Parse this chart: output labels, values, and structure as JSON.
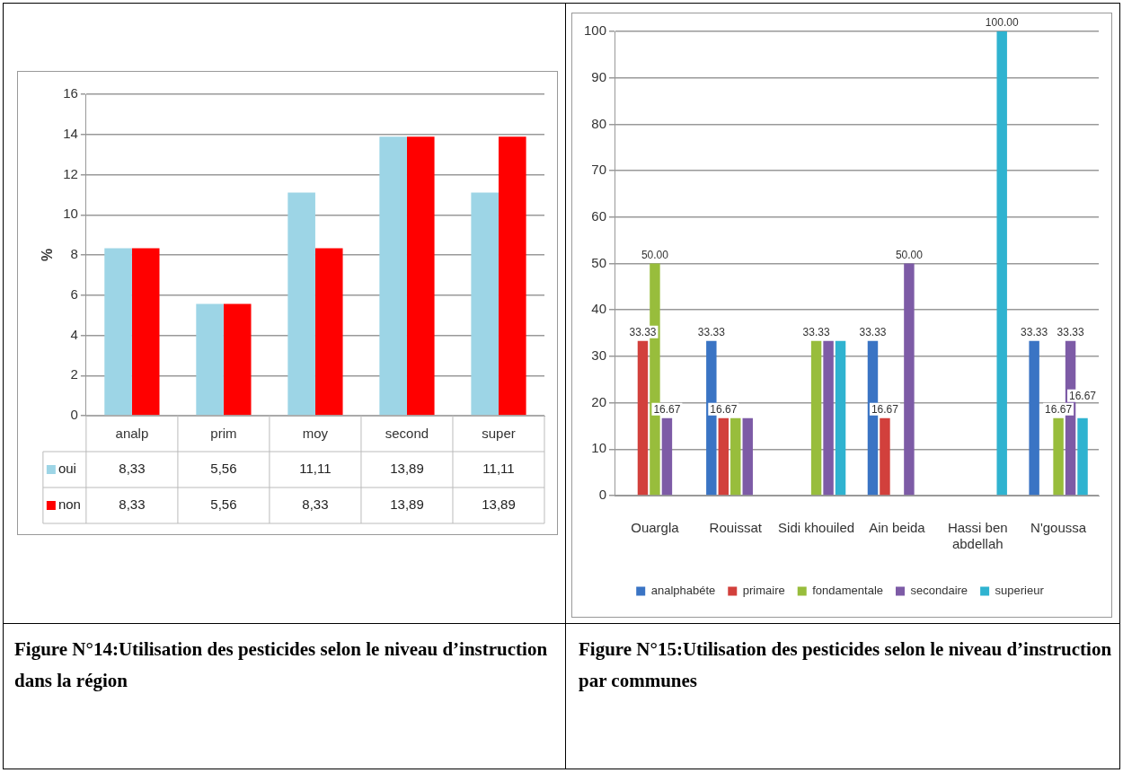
{
  "chart_data": [
    {
      "type": "bar",
      "title": "Figure N°14:Utilisation des pesticides selon le niveau d’instruction dans la région",
      "ylabel": "%",
      "categories": [
        "analp",
        "prim",
        "moy",
        "second",
        "super"
      ],
      "series": [
        {
          "name": "oui",
          "color": "#9dd5e6",
          "values": [
            8.33,
            5.56,
            11.11,
            13.89,
            11.11
          ],
          "value_labels": [
            "8,33",
            "5,56",
            "11,11",
            "13,89",
            "11,11"
          ]
        },
        {
          "name": "non",
          "color": "#ff0000",
          "values": [
            8.33,
            5.56,
            8.33,
            13.89,
            13.89
          ],
          "value_labels": [
            "8,33",
            "5,56",
            "8,33",
            "13,89",
            "13,89"
          ]
        }
      ],
      "ylim": [
        0,
        16
      ],
      "yticks": [
        0,
        2,
        4,
        6,
        8,
        10,
        12,
        14,
        16
      ],
      "grid": "y",
      "legend": "bottom"
    },
    {
      "type": "bar",
      "title": "Figure N°15:Utilisation des pesticides selon le niveau d’instruction par communes",
      "categories": [
        "Ouargla",
        "Rouissat",
        "Sidi khouiled",
        "Ain beida",
        "Hassi ben abdellah",
        "N'goussa"
      ],
      "series": [
        {
          "name": "analphabéte",
          "color": "#3a74c4",
          "values": [
            0,
            33.33,
            0,
            33.33,
            0,
            33.33
          ],
          "value_labels": [
            null,
            "33.33",
            null,
            "33.33",
            null,
            "33.33"
          ]
        },
        {
          "name": "primaire",
          "color": "#d2403c",
          "values": [
            33.33,
            16.67,
            0,
            16.67,
            0,
            0
          ],
          "value_labels": [
            "33.33",
            "16.67",
            null,
            "16.67",
            null,
            null
          ]
        },
        {
          "name": "fondamentale",
          "color": "#98bd3c",
          "values": [
            50,
            16.67,
            33.33,
            0,
            0,
            16.67
          ],
          "value_labels": [
            "50.00",
            null,
            "33.33",
            null,
            null,
            "16.67"
          ]
        },
        {
          "name": "secondaire",
          "color": "#7d5ba6",
          "values": [
            16.67,
            16.67,
            33.33,
            50,
            0,
            33.33
          ],
          "value_labels": [
            "16.67",
            null,
            null,
            "50.00",
            null,
            "33.33"
          ]
        },
        {
          "name": "superieur",
          "color": "#2fb3d0",
          "values": [
            0,
            0,
            33.33,
            0,
            100,
            16.67
          ],
          "value_labels": [
            null,
            null,
            null,
            null,
            "100.00",
            "16.67"
          ]
        }
      ],
      "ylim": [
        0,
        100
      ],
      "yticks": [
        0,
        10,
        20,
        30,
        40,
        50,
        60,
        70,
        80,
        90,
        100
      ],
      "grid": "y",
      "legend": "bottom"
    }
  ]
}
